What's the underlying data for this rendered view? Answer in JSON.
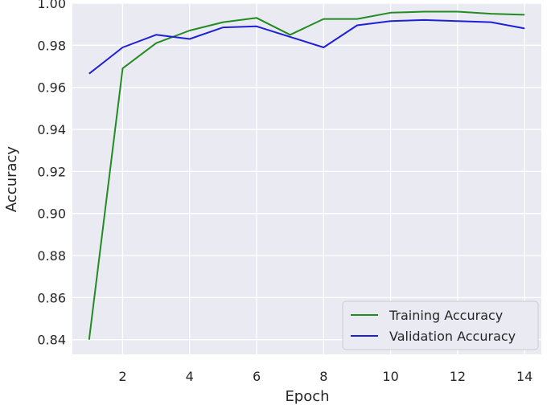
{
  "chart_data": {
    "type": "line",
    "xlabel": "Epoch",
    "ylabel": "Accuracy",
    "xlim": [
      0.5,
      14.5
    ],
    "ylim": [
      0.833,
      1.0
    ],
    "xticks": [
      2,
      4,
      6,
      8,
      10,
      12,
      14
    ],
    "yticks": [
      0.84,
      0.86,
      0.88,
      0.9,
      0.92,
      0.94,
      0.96,
      0.98,
      1.0
    ],
    "ytick_labels": [
      "0.84",
      "0.86",
      "0.88",
      "0.90",
      "0.92",
      "0.94",
      "0.96",
      "0.98",
      "1.00"
    ],
    "grid": true,
    "legend_position": "bottom-right",
    "background_color": "#eaeaf2",
    "grid_color": "#ffffff",
    "series": [
      {
        "name": "Training Accuracy",
        "color": "#228b22",
        "x": [
          1,
          2,
          3,
          4,
          5,
          6,
          7,
          8,
          9,
          10,
          11,
          12,
          13,
          14
        ],
        "values": [
          0.84,
          0.969,
          0.981,
          0.987,
          0.991,
          0.993,
          0.985,
          0.9925,
          0.9925,
          0.9955,
          0.996,
          0.996,
          0.995,
          0.9945
        ]
      },
      {
        "name": "Validation Accuracy",
        "color": "#1f1fd6",
        "x": [
          1,
          2,
          3,
          4,
          5,
          6,
          7,
          8,
          9,
          10,
          11,
          12,
          13,
          14
        ],
        "values": [
          0.9665,
          0.979,
          0.985,
          0.983,
          0.9885,
          0.989,
          0.984,
          0.979,
          0.9895,
          0.9915,
          0.992,
          0.9915,
          0.991,
          0.988
        ]
      }
    ]
  }
}
